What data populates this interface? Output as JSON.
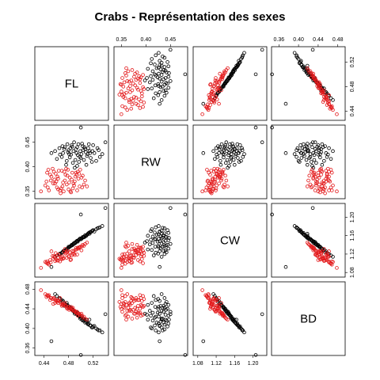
{
  "chart_data": {
    "type": "scatter",
    "title": "Crabs - Représentation des sexes",
    "variables": [
      "FL",
      "RW",
      "CW",
      "BD"
    ],
    "axes": {
      "FL": {
        "range": [
          0.425,
          0.545
        ],
        "ticks": [
          0.44,
          0.48,
          0.52
        ],
        "tick_labels": [
          "0.44",
          "0.48",
          "0.52"
        ]
      },
      "RW": {
        "range": [
          0.335,
          0.485
        ],
        "ticks": [
          0.35,
          0.4,
          0.45
        ],
        "tick_labels": [
          "0.35",
          "0.40",
          "0.45"
        ]
      },
      "CW": {
        "range": [
          1.07,
          1.23
        ],
        "ticks": [
          1.08,
          1.12,
          1.16,
          1.2
        ],
        "tick_labels": [
          "1.08",
          "1.12",
          "1.16",
          "1.20"
        ]
      },
      "BD": {
        "range": [
          0.345,
          0.495
        ],
        "ticks": [
          0.36,
          0.4,
          0.44,
          0.48
        ],
        "tick_labels": [
          "0.36",
          "0.40",
          "0.44",
          "0.48"
        ]
      }
    },
    "series": [
      {
        "name": "",
        "color": "#000000",
        "points": [
          {
            "FL": 0.473,
            "RW": 0.436,
            "CW": 1.127,
            "BD": 0.446
          },
          {
            "FL": 0.498,
            "RW": 0.42,
            "CW": 1.153,
            "BD": 0.424
          },
          {
            "FL": 0.509,
            "RW": 0.404,
            "CW": 1.16,
            "BD": 0.418
          },
          {
            "FL": 0.486,
            "RW": 0.441,
            "CW": 1.139,
            "BD": 0.438
          },
          {
            "FL": 0.493,
            "RW": 0.428,
            "CW": 1.148,
            "BD": 0.43
          },
          {
            "FL": 0.514,
            "RW": 0.432,
            "CW": 1.164,
            "BD": 0.418
          },
          {
            "FL": 0.477,
            "RW": 0.412,
            "CW": 1.129,
            "BD": 0.452
          },
          {
            "FL": 0.466,
            "RW": 0.425,
            "CW": 1.121,
            "BD": 0.46
          },
          {
            "FL": 0.531,
            "RW": 0.42,
            "CW": 1.178,
            "BD": 0.396
          },
          {
            "FL": 0.503,
            "RW": 0.442,
            "CW": 1.157,
            "BD": 0.416
          },
          {
            "FL": 0.49,
            "RW": 0.398,
            "CW": 1.145,
            "BD": 0.43
          },
          {
            "FL": 0.522,
            "RW": 0.428,
            "CW": 1.169,
            "BD": 0.405
          },
          {
            "FL": 0.48,
            "RW": 0.434,
            "CW": 1.136,
            "BD": 0.442
          },
          {
            "FL": 0.461,
            "RW": 0.416,
            "CW": 1.117,
            "BD": 0.466
          },
          {
            "FL": 0.507,
            "RW": 0.436,
            "CW": 1.161,
            "BD": 0.412
          },
          {
            "FL": 0.496,
            "RW": 0.446,
            "CW": 1.15,
            "BD": 0.426
          },
          {
            "FL": 0.518,
            "RW": 0.41,
            "CW": 1.17,
            "BD": 0.402
          },
          {
            "FL": 0.484,
            "RW": 0.425,
            "CW": 1.138,
            "BD": 0.44
          },
          {
            "FL": 0.47,
            "RW": 0.442,
            "CW": 1.124,
            "BD": 0.454
          },
          {
            "FL": 0.5,
            "RW": 0.418,
            "CW": 1.152,
            "BD": 0.422
          },
          {
            "FL": 0.527,
            "RW": 0.438,
            "CW": 1.176,
            "BD": 0.398
          },
          {
            "FL": 0.489,
            "RW": 0.45,
            "CW": 1.142,
            "BD": 0.434
          },
          {
            "FL": 0.511,
            "RW": 0.426,
            "CW": 1.163,
            "BD": 0.41
          },
          {
            "FL": 0.476,
            "RW": 0.404,
            "CW": 1.13,
            "BD": 0.448
          },
          {
            "FL": 0.458,
            "RW": 0.432,
            "CW": 1.114,
            "BD": 0.47
          },
          {
            "FL": 0.494,
            "RW": 0.44,
            "CW": 1.149,
            "BD": 0.428
          },
          {
            "FL": 0.505,
            "RW": 0.414,
            "CW": 1.158,
            "BD": 0.416
          },
          {
            "FL": 0.52,
            "RW": 0.444,
            "CW": 1.172,
            "BD": 0.404
          },
          {
            "FL": 0.482,
            "RW": 0.419,
            "CW": 1.136,
            "BD": 0.444
          },
          {
            "FL": 0.499,
            "RW": 0.432,
            "CW": 1.154,
            "BD": 0.42
          },
          {
            "FL": 0.535,
            "RW": 0.426,
            "CW": 1.181,
            "BD": 0.392
          },
          {
            "FL": 0.471,
            "RW": 0.428,
            "CW": 1.126,
            "BD": 0.456
          },
          {
            "FL": 0.487,
            "RW": 0.408,
            "CW": 1.141,
            "BD": 0.436
          },
          {
            "FL": 0.512,
            "RW": 0.438,
            "CW": 1.165,
            "BD": 0.408
          },
          {
            "FL": 0.495,
            "RW": 0.424,
            "CW": 1.147,
            "BD": 0.432
          },
          {
            "FL": 0.465,
            "RW": 0.438,
            "CW": 1.12,
            "BD": 0.462
          },
          {
            "FL": 0.502,
            "RW": 0.447,
            "CW": 1.155,
            "BD": 0.418
          },
          {
            "FL": 0.516,
            "RW": 0.418,
            "CW": 1.167,
            "BD": 0.406
          },
          {
            "FL": 0.479,
            "RW": 0.43,
            "CW": 1.133,
            "BD": 0.446
          },
          {
            "FL": 0.492,
            "RW": 0.436,
            "CW": 1.146,
            "BD": 0.434
          },
          {
            "FL": 0.508,
            "RW": 0.43,
            "CW": 1.159,
            "BD": 0.414
          },
          {
            "FL": 0.525,
            "RW": 0.412,
            "CW": 1.174,
            "BD": 0.4
          },
          {
            "FL": 0.485,
            "RW": 0.444,
            "CW": 1.14,
            "BD": 0.44
          },
          {
            "FL": 0.469,
            "RW": 0.42,
            "CW": 1.123,
            "BD": 0.458
          },
          {
            "FL": 0.497,
            "RW": 0.41,
            "CW": 1.151,
            "BD": 0.426
          },
          {
            "FL": 0.513,
            "RW": 0.446,
            "CW": 1.166,
            "BD": 0.41
          },
          {
            "FL": 0.481,
            "RW": 0.426,
            "CW": 1.135,
            "BD": 0.444
          },
          {
            "FL": 0.504,
            "RW": 0.434,
            "CW": 1.156,
            "BD": 0.42
          },
          {
            "FL": 0.491,
            "RW": 0.414,
            "CW": 1.144,
            "BD": 0.432
          },
          {
            "FL": 0.474,
            "RW": 0.44,
            "CW": 1.128,
            "BD": 0.45
          },
          {
            "FL": 0.519,
            "RW": 0.432,
            "CW": 1.171,
            "BD": 0.402
          },
          {
            "FL": 0.501,
            "RW": 0.426,
            "CW": 1.153,
            "BD": 0.424
          },
          {
            "FL": 0.488,
            "RW": 0.432,
            "CW": 1.143,
            "BD": 0.436
          },
          {
            "FL": 0.51,
            "RW": 0.422,
            "CW": 1.162,
            "BD": 0.412
          },
          {
            "FL": 0.478,
            "RW": 0.446,
            "CW": 1.132,
            "BD": 0.448
          },
          {
            "FL": 0.506,
            "RW": 0.44,
            "CW": 1.157,
            "BD": 0.418
          },
          {
            "FL": 0.494,
            "RW": 0.402,
            "CW": 1.148,
            "BD": 0.428
          },
          {
            "FL": 0.529,
            "RW": 0.434,
            "CW": 1.177,
            "BD": 0.396
          },
          {
            "FL": 0.483,
            "RW": 0.438,
            "CW": 1.137,
            "BD": 0.442
          },
          {
            "FL": 0.515,
            "RW": 0.428,
            "CW": 1.168,
            "BD": 0.406
          },
          {
            "FL": 0.5,
            "RW": 0.48,
            "CW": 1.206,
            "BD": 0.346
          },
          {
            "FL": 0.54,
            "RW": 0.45,
            "CW": 1.22,
            "BD": 0.429
          },
          {
            "FL": 0.452,
            "RW": 0.428,
            "CW": 1.092,
            "BD": 0.374
          }
        ]
      },
      {
        "name": "",
        "color": "#e31a1c",
        "points": [
          {
            "FL": 0.455,
            "RW": 0.366,
            "CW": 1.11,
            "BD": 0.45
          },
          {
            "FL": 0.478,
            "RW": 0.382,
            "CW": 1.124,
            "BD": 0.44
          },
          {
            "FL": 0.466,
            "RW": 0.352,
            "CW": 1.104,
            "BD": 0.462
          },
          {
            "FL": 0.49,
            "RW": 0.37,
            "CW": 1.118,
            "BD": 0.436
          },
          {
            "FL": 0.447,
            "RW": 0.394,
            "CW": 1.1,
            "BD": 0.466
          },
          {
            "FL": 0.47,
            "RW": 0.36,
            "CW": 1.115,
            "BD": 0.448
          },
          {
            "FL": 0.501,
            "RW": 0.378,
            "CW": 1.128,
            "BD": 0.43
          },
          {
            "FL": 0.459,
            "RW": 0.386,
            "CW": 1.122,
            "BD": 0.458
          },
          {
            "FL": 0.484,
            "RW": 0.348,
            "CW": 1.108,
            "BD": 0.444
          },
          {
            "FL": 0.474,
            "RW": 0.372,
            "CW": 1.131,
            "BD": 0.452
          },
          {
            "FL": 0.442,
            "RW": 0.362,
            "CW": 1.103,
            "BD": 0.47
          },
          {
            "FL": 0.495,
            "RW": 0.39,
            "CW": 1.134,
            "BD": 0.426
          },
          {
            "FL": 0.463,
            "RW": 0.376,
            "CW": 1.112,
            "BD": 0.456
          },
          {
            "FL": 0.487,
            "RW": 0.356,
            "CW": 1.12,
            "BD": 0.442
          },
          {
            "FL": 0.452,
            "RW": 0.38,
            "CW": 1.126,
            "BD": 0.462
          },
          {
            "FL": 0.505,
            "RW": 0.364,
            "CW": 1.138,
            "BD": 0.424
          },
          {
            "FL": 0.469,
            "RW": 0.392,
            "CW": 1.109,
            "BD": 0.446
          },
          {
            "FL": 0.481,
            "RW": 0.368,
            "CW": 1.116,
            "BD": 0.438
          },
          {
            "FL": 0.448,
            "RW": 0.352,
            "CW": 1.097,
            "BD": 0.468
          },
          {
            "FL": 0.493,
            "RW": 0.384,
            "CW": 1.13,
            "BD": 0.432
          },
          {
            "FL": 0.461,
            "RW": 0.358,
            "CW": 1.106,
            "BD": 0.454
          },
          {
            "FL": 0.476,
            "RW": 0.396,
            "CW": 1.123,
            "BD": 0.446
          },
          {
            "FL": 0.498,
            "RW": 0.36,
            "CW": 1.135,
            "BD": 0.428
          },
          {
            "FL": 0.457,
            "RW": 0.374,
            "CW": 1.113,
            "BD": 0.46
          },
          {
            "FL": 0.486,
            "RW": 0.388,
            "CW": 1.127,
            "BD": 0.44
          },
          {
            "FL": 0.444,
            "RW": 0.37,
            "CW": 1.101,
            "BD": 0.464
          },
          {
            "FL": 0.472,
            "RW": 0.35,
            "CW": 1.111,
            "BD": 0.45
          },
          {
            "FL": 0.503,
            "RW": 0.382,
            "CW": 1.14,
            "BD": 0.422
          },
          {
            "FL": 0.464,
            "RW": 0.392,
            "CW": 1.119,
            "BD": 0.456
          },
          {
            "FL": 0.489,
            "RW": 0.362,
            "CW": 1.121,
            "BD": 0.436
          },
          {
            "FL": 0.45,
            "RW": 0.384,
            "CW": 1.107,
            "BD": 0.458
          },
          {
            "FL": 0.48,
            "RW": 0.354,
            "CW": 1.114,
            "BD": 0.444
          },
          {
            "FL": 0.496,
            "RW": 0.376,
            "CW": 1.132,
            "BD": 0.43
          },
          {
            "FL": 0.458,
            "RW": 0.366,
            "CW": 1.105,
            "BD": 0.452
          },
          {
            "FL": 0.473,
            "RW": 0.39,
            "CW": 1.125,
            "BD": 0.448
          },
          {
            "FL": 0.485,
            "RW": 0.374,
            "CW": 1.117,
            "BD": 0.438
          },
          {
            "FL": 0.446,
            "RW": 0.358,
            "CW": 1.099,
            "BD": 0.466
          },
          {
            "FL": 0.499,
            "RW": 0.394,
            "CW": 1.136,
            "BD": 0.428
          },
          {
            "FL": 0.467,
            "RW": 0.346,
            "CW": 1.11,
            "BD": 0.454
          },
          {
            "FL": 0.491,
            "RW": 0.38,
            "CW": 1.129,
            "BD": 0.434
          },
          {
            "FL": 0.454,
            "RW": 0.396,
            "CW": 1.116,
            "BD": 0.46
          },
          {
            "FL": 0.477,
            "RW": 0.364,
            "CW": 1.112,
            "BD": 0.442
          },
          {
            "FL": 0.507,
            "RW": 0.372,
            "CW": 1.142,
            "BD": 0.42
          },
          {
            "FL": 0.462,
            "RW": 0.38,
            "CW": 1.118,
            "BD": 0.458
          },
          {
            "FL": 0.483,
            "RW": 0.35,
            "CW": 1.107,
            "BD": 0.44
          },
          {
            "FL": 0.451,
            "RW": 0.372,
            "CW": 1.102,
            "BD": 0.462
          },
          {
            "FL": 0.492,
            "RW": 0.388,
            "CW": 1.133,
            "BD": 0.432
          },
          {
            "FL": 0.468,
            "RW": 0.356,
            "CW": 1.113,
            "BD": 0.45
          },
          {
            "FL": 0.475,
            "RW": 0.384,
            "CW": 1.121,
            "BD": 0.446
          },
          {
            "FL": 0.488,
            "RW": 0.366,
            "CW": 1.126,
            "BD": 0.436
          },
          {
            "FL": 0.445,
            "RW": 0.388,
            "CW": 1.104,
            "BD": 0.468
          },
          {
            "FL": 0.502,
            "RW": 0.358,
            "CW": 1.137,
            "BD": 0.426
          },
          {
            "FL": 0.46,
            "RW": 0.37,
            "CW": 1.108,
            "BD": 0.456
          },
          {
            "FL": 0.479,
            "RW": 0.394,
            "CW": 1.127,
            "BD": 0.444
          },
          {
            "FL": 0.494,
            "RW": 0.352,
            "CW": 1.119,
            "BD": 0.434
          },
          {
            "FL": 0.456,
            "RW": 0.39,
            "CW": 1.115,
            "BD": 0.462
          },
          {
            "FL": 0.471,
            "RW": 0.368,
            "CW": 1.11,
            "BD": 0.448
          },
          {
            "FL": 0.497,
            "RW": 0.386,
            "CW": 1.134,
            "BD": 0.43
          },
          {
            "FL": 0.463,
            "RW": 0.354,
            "CW": 1.106,
            "BD": 0.452
          },
          {
            "FL": 0.482,
            "RW": 0.378,
            "CW": 1.124,
            "BD": 0.442
          },
          {
            "FL": 0.435,
            "RW": 0.35,
            "CW": 1.09,
            "BD": 0.478
          },
          {
            "FL": 0.51,
            "RW": 0.36,
            "CW": 1.145,
            "BD": 0.418
          }
        ]
      }
    ],
    "grid": false,
    "legend": "none"
  }
}
